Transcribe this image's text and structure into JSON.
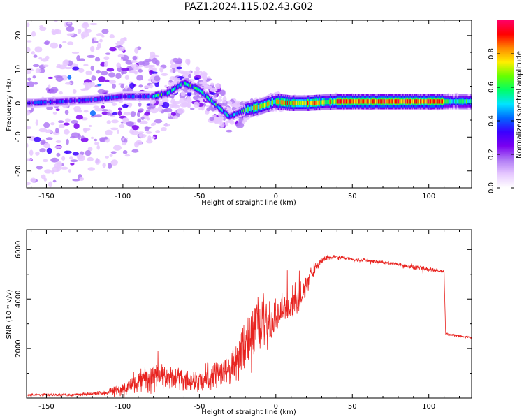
{
  "title": "PAZ1.2024.115.02.43.G02",
  "colors": {
    "snr_line": "#e8231f",
    "axis": "#000000",
    "background": "#ffffff"
  },
  "colormap": [
    "#ffffff",
    "#e6c8ff",
    "#b07af5",
    "#7a00f0",
    "#3a00ff",
    "#0066ff",
    "#00e5ff",
    "#00ff66",
    "#66ff00",
    "#ffee00",
    "#ff8800",
    "#ff0000",
    "#ff0066"
  ],
  "chart_data": [
    {
      "type": "heatmap",
      "xlabel": "Height of straight line (km)",
      "ylabel": "Frequency (Hz)",
      "xlim": [
        -163,
        128
      ],
      "ylim": [
        -25,
        24.5
      ],
      "xticks": [
        -150,
        -100,
        -50,
        0,
        50,
        100
      ],
      "yticks": [
        -20,
        -10,
        0,
        10,
        20
      ],
      "colorbar": {
        "label": "Normalized spectral amplitude",
        "range": [
          0,
          1
        ],
        "ticks": [
          "0.0",
          "0.2",
          "0.4",
          "0.6",
          "0.8"
        ]
      },
      "ridge": {
        "x": [
          -163,
          -120,
          -100,
          -80,
          -70,
          -60,
          -50,
          -40,
          -30,
          -20,
          -10,
          0,
          10,
          20,
          40,
          60,
          80,
          100,
          128
        ],
        "y": [
          0,
          1,
          2,
          2,
          3,
          6,
          4,
          0,
          -4,
          -2,
          -1,
          0.5,
          0,
          0,
          0.5,
          0.5,
          0.5,
          0.5,
          0.5
        ],
        "spread": [
          24,
          22,
          18,
          12,
          9,
          7,
          6,
          6,
          5,
          3,
          2.5,
          2.5,
          2,
          2,
          2,
          2,
          2,
          2,
          2
        ]
      }
    },
    {
      "type": "line",
      "xlabel": "Height of straight line (km)",
      "ylabel": "SNR (10 * v/v)",
      "xlim": [
        -163,
        128
      ],
      "ylim": [
        0,
        6800
      ],
      "xticks": [
        -150,
        -100,
        -50,
        0,
        50,
        100
      ],
      "yticks": [
        2000,
        4000,
        6000
      ],
      "x": [
        -163,
        -130,
        -115,
        -100,
        -90,
        -80,
        -70,
        -60,
        -50,
        -40,
        -30,
        -25,
        -20,
        -15,
        -10,
        -5,
        0,
        5,
        10,
        15,
        20,
        25,
        30,
        35,
        40,
        50,
        60,
        70,
        80,
        90,
        100,
        105,
        110,
        111,
        115,
        120,
        128
      ],
      "y": [
        130,
        130,
        200,
        350,
        700,
        900,
        850,
        700,
        750,
        950,
        1100,
        1700,
        2300,
        2600,
        3000,
        2900,
        3300,
        3600,
        3800,
        4000,
        4600,
        5200,
        5550,
        5700,
        5700,
        5600,
        5550,
        5480,
        5400,
        5300,
        5200,
        5150,
        5100,
        2600,
        2550,
        2500,
        2450
      ],
      "noise": [
        60,
        60,
        100,
        300,
        550,
        650,
        600,
        500,
        550,
        700,
        800,
        1100,
        1300,
        1400,
        1500,
        1300,
        900,
        800,
        1100,
        700,
        600,
        250,
        150,
        120,
        100,
        80,
        80,
        80,
        80,
        150,
        100,
        80,
        80,
        60,
        60,
        60,
        60
      ]
    }
  ]
}
